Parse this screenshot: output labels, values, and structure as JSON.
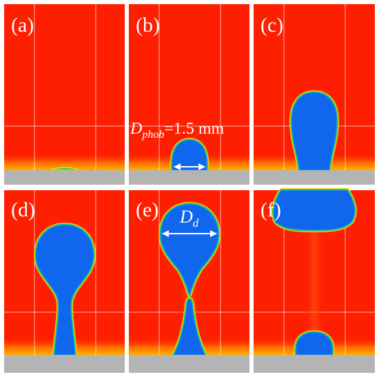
{
  "figure": {
    "colors": {
      "background_phase": "#fe1e00",
      "droplet_phase": "#1166ee",
      "interface_outer": "#ffd000",
      "interface_mid": "#22dd44",
      "substrate": "#b4b4b4",
      "substrate_glow": "#ff9a00",
      "grid_line": "#ffffff",
      "annotation": "#ffffff"
    },
    "panels": [
      {
        "label": "(a)"
      },
      {
        "label": "(b)"
      },
      {
        "label": "(c)"
      },
      {
        "label": "(d)"
      },
      {
        "label": "(e)"
      },
      {
        "label": "(f)"
      }
    ],
    "annotations": {
      "phob_symbol": "D",
      "phob_subscript": "phob",
      "phob_value": "=1.5 mm",
      "dd_symbol": "D",
      "dd_subscript": "d"
    }
  }
}
